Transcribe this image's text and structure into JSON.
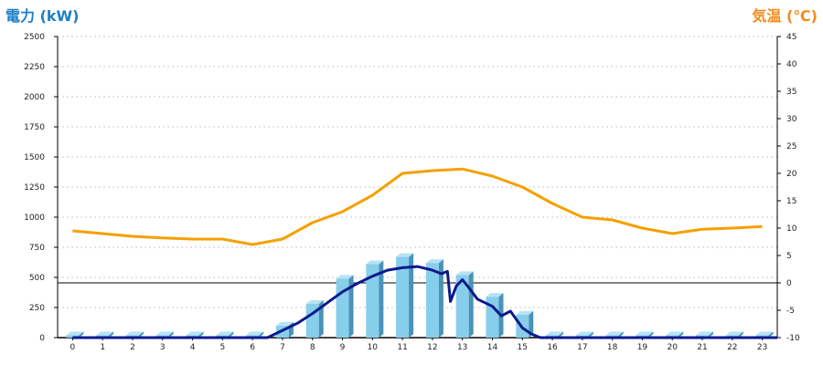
{
  "chart_data": {
    "type": "bar",
    "left_axis_title": "電力 (kW)",
    "right_axis_title": "気温 (℃)",
    "categories": [
      "0",
      "1",
      "2",
      "3",
      "4",
      "5",
      "6",
      "7",
      "8",
      "9",
      "10",
      "11",
      "12",
      "13",
      "14",
      "15",
      "16",
      "17",
      "18",
      "19",
      "20",
      "21",
      "22",
      "23"
    ],
    "y_left": {
      "min": 0,
      "max": 2500,
      "ticks": [
        0,
        250,
        500,
        750,
        1000,
        1250,
        1500,
        1750,
        2000,
        2250,
        2500
      ]
    },
    "y_right": {
      "min": -10,
      "max": 45,
      "ticks": [
        -10,
        -5,
        0,
        5,
        10,
        15,
        20,
        25,
        30,
        35,
        40,
        45
      ]
    },
    "grid": true,
    "series": [
      {
        "kind": "bar",
        "axis": "left",
        "color": "#87ceeb",
        "values": [
          20,
          20,
          20,
          20,
          20,
          20,
          20,
          100,
          280,
          490,
          610,
          670,
          620,
          520,
          340,
          190,
          20,
          20,
          20,
          20,
          20,
          20,
          20,
          20
        ]
      },
      {
        "kind": "line",
        "axis": "left",
        "color": "#0a1a8c",
        "points": [
          [
            0,
            0
          ],
          [
            6.5,
            0
          ],
          [
            7,
            60
          ],
          [
            7.5,
            120
          ],
          [
            8,
            200
          ],
          [
            8.5,
            290
          ],
          [
            9,
            380
          ],
          [
            9.5,
            450
          ],
          [
            10,
            510
          ],
          [
            10.5,
            560
          ],
          [
            11,
            580
          ],
          [
            11.5,
            590
          ],
          [
            12,
            560
          ],
          [
            12.3,
            530
          ],
          [
            12.5,
            550
          ],
          [
            12.6,
            300
          ],
          [
            12.8,
            430
          ],
          [
            13,
            480
          ],
          [
            13.2,
            420
          ],
          [
            13.5,
            320
          ],
          [
            14,
            260
          ],
          [
            14.3,
            180
          ],
          [
            14.6,
            220
          ],
          [
            15,
            80
          ],
          [
            15.3,
            30
          ],
          [
            15.6,
            0
          ],
          [
            23.5,
            0
          ]
        ]
      },
      {
        "kind": "line",
        "axis": "right",
        "color": "#f5a000",
        "points": [
          [
            0,
            9.5
          ],
          [
            1,
            9
          ],
          [
            2,
            8.5
          ],
          [
            3,
            8.2
          ],
          [
            4,
            8
          ],
          [
            5,
            8
          ],
          [
            6,
            7
          ],
          [
            7,
            8
          ],
          [
            8,
            11
          ],
          [
            9,
            13
          ],
          [
            10,
            16
          ],
          [
            11,
            20
          ],
          [
            12,
            20.5
          ],
          [
            13,
            20.8
          ],
          [
            14,
            19.5
          ],
          [
            15,
            17.5
          ],
          [
            16,
            14.5
          ],
          [
            17,
            12
          ],
          [
            18,
            11.5
          ],
          [
            19,
            10
          ],
          [
            20,
            9
          ],
          [
            21,
            9.8
          ],
          [
            22,
            10
          ],
          [
            23,
            10.3
          ]
        ]
      }
    ]
  }
}
